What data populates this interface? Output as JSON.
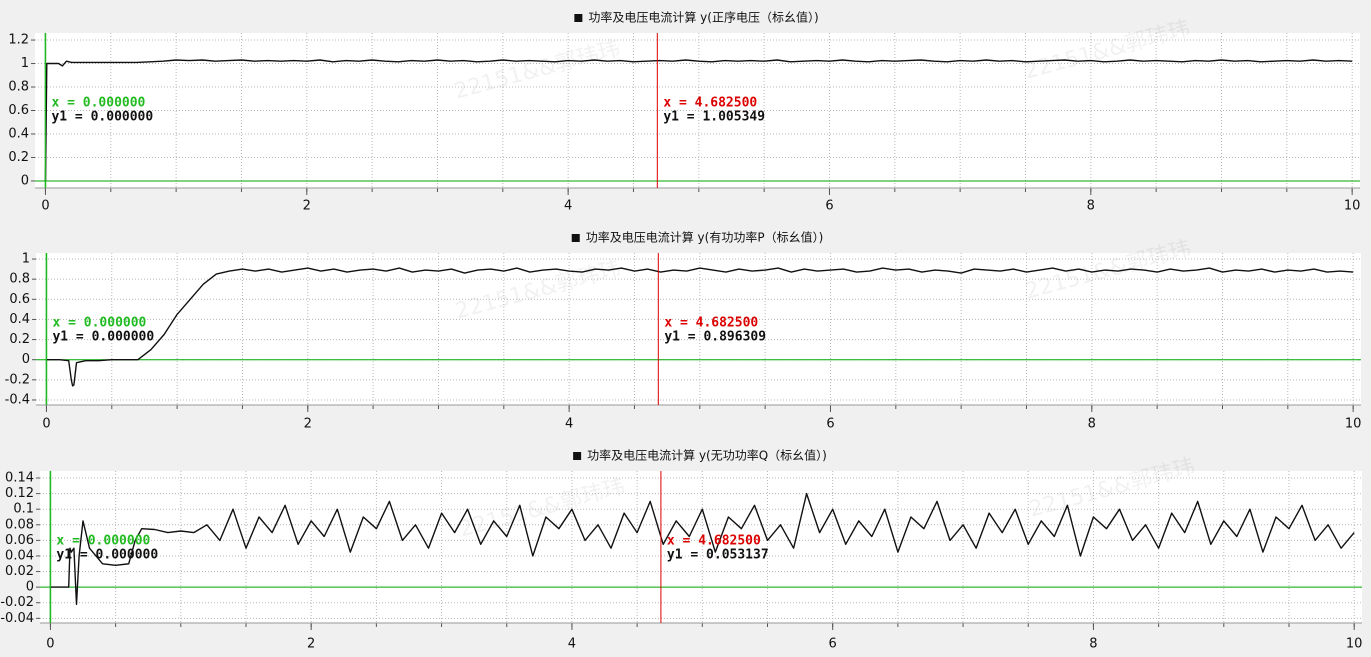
{
  "watermark": "22151&&郭玮玮",
  "chart_data": [
    {
      "type": "line",
      "title": "功率及电压电流计算 y(正序电压（标幺值）)",
      "xlim": [
        -0.08,
        10.06
      ],
      "ylim": [
        -0.06,
        1.26
      ],
      "xticks": [
        0,
        2,
        4,
        6,
        8,
        10
      ],
      "yticks": [
        0,
        0.2,
        0.4,
        0.6,
        0.8,
        1,
        1.2
      ],
      "minor_xticks": [
        0,
        0.5,
        1,
        1.5,
        2,
        2.5,
        3,
        3.5,
        4,
        4.5,
        5,
        5.5,
        6,
        6.5,
        7,
        7.5,
        8,
        8.5,
        9,
        9.5,
        10
      ],
      "grid": true,
      "axis_color": "#00aa00",
      "x": [
        0,
        0.01,
        0.1,
        0.13,
        0.16,
        0.2,
        0.3,
        0.4,
        0.5,
        0.6,
        0.7,
        0.8,
        0.9,
        1,
        1.1,
        1.2,
        1.3,
        1.4,
        1.5,
        1.6,
        1.7,
        1.8,
        1.9,
        2,
        2.1,
        2.2,
        2.3,
        2.4,
        2.5,
        2.6,
        2.7,
        2.8,
        2.9,
        3,
        3.1,
        3.2,
        3.3,
        3.4,
        3.5,
        3.6,
        3.7,
        3.8,
        3.9,
        4,
        4.1,
        4.2,
        4.3,
        4.4,
        4.5,
        4.6,
        4.7,
        4.8,
        4.9,
        5,
        5.1,
        5.2,
        5.3,
        5.4,
        5.5,
        5.6,
        5.7,
        5.8,
        5.9,
        6,
        6.1,
        6.2,
        6.3,
        6.4,
        6.5,
        6.6,
        6.7,
        6.8,
        6.9,
        7,
        7.1,
        7.2,
        7.3,
        7.4,
        7.5,
        7.6,
        7.7,
        7.8,
        7.9,
        8,
        8.1,
        8.2,
        8.3,
        8.4,
        8.5,
        8.6,
        8.7,
        8.8,
        8.9,
        9,
        9.1,
        9.2,
        9.3,
        9.4,
        9.5,
        9.6,
        9.7,
        9.8,
        9.9,
        10
      ],
      "series": [
        {
          "color": "#111111",
          "values": [
            0,
            1,
            1,
            0.98,
            1.02,
            1.01,
            1.01,
            1.01,
            1.01,
            1.01,
            1.01,
            1.015,
            1.02,
            1.03,
            1.025,
            1.03,
            1.02,
            1.025,
            1.03,
            1.02,
            1.025,
            1.02,
            1.025,
            1.02,
            1.03,
            1.015,
            1.025,
            1.02,
            1.03,
            1.02,
            1.015,
            1.025,
            1.02,
            1.03,
            1.02,
            1.025,
            1.015,
            1.02,
            1.03,
            1.02,
            1.025,
            1.02,
            1.015,
            1.025,
            1.02,
            1.03,
            1.02,
            1.025,
            1.015,
            1.02,
            1.025,
            1.02,
            1.03,
            1.02,
            1.015,
            1.025,
            1.02,
            1.025,
            1.02,
            1.03,
            1.015,
            1.02,
            1.025,
            1.02,
            1.03,
            1.02,
            1.015,
            1.025,
            1.02,
            1.025,
            1.03,
            1.02,
            1.015,
            1.025,
            1.02,
            1.03,
            1.02,
            1.025,
            1.015,
            1.02,
            1.025,
            1.03,
            1.02,
            1.025,
            1.015,
            1.02,
            1.03,
            1.02,
            1.025,
            1.02,
            1.015,
            1.025,
            1.02,
            1.03,
            1.02,
            1.025,
            1.015,
            1.02,
            1.025,
            1.02,
            1.03,
            1.02,
            1.025,
            1.02
          ]
        }
      ],
      "cursors": [
        {
          "x": 0,
          "color": "#22bb22",
          "x_label": "x = 0.000000",
          "y_label": "y1 = 0.000000"
        },
        {
          "x": 4.6825,
          "color": "#dd0000",
          "x_label": "x = 4.682500",
          "y_label": "y1 = 1.005349"
        }
      ]
    },
    {
      "type": "line",
      "title": "功率及电压电流计算 y(有功功率P（标幺值）)",
      "xlim": [
        -0.08,
        10.06
      ],
      "ylim": [
        -0.45,
        1.06
      ],
      "xticks": [
        0,
        2,
        4,
        6,
        8,
        10
      ],
      "yticks": [
        -0.4,
        -0.2,
        0,
        0.2,
        0.4,
        0.6,
        0.8,
        1
      ],
      "minor_xticks": [
        0,
        0.5,
        1,
        1.5,
        2,
        2.5,
        3,
        3.5,
        4,
        4.5,
        5,
        5.5,
        6,
        6.5,
        7,
        7.5,
        8,
        8.5,
        9,
        9.5,
        10
      ],
      "grid": true,
      "axis_color": "#00aa00",
      "x": [
        0,
        0.1,
        0.17,
        0.19,
        0.2,
        0.21,
        0.23,
        0.3,
        0.4,
        0.5,
        0.6,
        0.7,
        0.8,
        0.9,
        1,
        1.1,
        1.2,
        1.3,
        1.4,
        1.5,
        1.6,
        1.7,
        1.8,
        1.9,
        2,
        2.1,
        2.2,
        2.3,
        2.4,
        2.5,
        2.6,
        2.7,
        2.8,
        2.9,
        3,
        3.1,
        3.2,
        3.3,
        3.4,
        3.5,
        3.6,
        3.7,
        3.8,
        3.9,
        4,
        4.1,
        4.2,
        4.3,
        4.4,
        4.5,
        4.6,
        4.7,
        4.8,
        4.9,
        5,
        5.1,
        5.2,
        5.3,
        5.4,
        5.5,
        5.6,
        5.7,
        5.8,
        5.9,
        6,
        6.1,
        6.2,
        6.3,
        6.4,
        6.5,
        6.6,
        6.7,
        6.8,
        6.9,
        7,
        7.1,
        7.2,
        7.3,
        7.4,
        7.5,
        7.6,
        7.7,
        7.8,
        7.9,
        8,
        8.1,
        8.2,
        8.3,
        8.4,
        8.5,
        8.6,
        8.7,
        8.8,
        8.9,
        9,
        9.1,
        9.2,
        9.3,
        9.4,
        9.5,
        9.6,
        9.7,
        9.8,
        9.9,
        10
      ],
      "series": [
        {
          "color": "#111111",
          "values": [
            0,
            0,
            -0.01,
            -0.2,
            -0.26,
            -0.25,
            -0.03,
            -0.01,
            -0.01,
            0,
            0,
            0,
            0.1,
            0.25,
            0.45,
            0.6,
            0.75,
            0.85,
            0.88,
            0.9,
            0.88,
            0.9,
            0.87,
            0.89,
            0.91,
            0.88,
            0.9,
            0.87,
            0.89,
            0.9,
            0.88,
            0.91,
            0.87,
            0.89,
            0.88,
            0.9,
            0.86,
            0.89,
            0.9,
            0.88,
            0.91,
            0.87,
            0.89,
            0.9,
            0.88,
            0.87,
            0.9,
            0.89,
            0.91,
            0.88,
            0.9,
            0.87,
            0.89,
            0.88,
            0.91,
            0.89,
            0.87,
            0.9,
            0.88,
            0.89,
            0.91,
            0.87,
            0.9,
            0.88,
            0.89,
            0.9,
            0.87,
            0.88,
            0.91,
            0.89,
            0.9,
            0.87,
            0.89,
            0.88,
            0.86,
            0.9,
            0.89,
            0.88,
            0.9,
            0.87,
            0.89,
            0.91,
            0.88,
            0.9,
            0.87,
            0.89,
            0.88,
            0.9,
            0.89,
            0.87,
            0.9,
            0.88,
            0.89,
            0.91,
            0.87,
            0.89,
            0.88,
            0.9,
            0.87,
            0.89,
            0.88,
            0.9,
            0.87,
            0.88,
            0.87
          ]
        }
      ],
      "cursors": [
        {
          "x": 0,
          "color": "#22bb22",
          "x_label": "x = 0.000000",
          "y_label": "y1 = 0.000000"
        },
        {
          "x": 4.6825,
          "color": "#dd0000",
          "x_label": "x = 4.682500",
          "y_label": "y1 = 0.896309"
        }
      ]
    },
    {
      "type": "line",
      "title": "功率及电压电流计算 y(无功功率Q（标幺值）)",
      "xlim": [
        -0.08,
        10.06
      ],
      "ylim": [
        -0.046,
        0.149
      ],
      "xticks": [
        0,
        2,
        4,
        6,
        8,
        10
      ],
      "yticks": [
        -0.04,
        -0.02,
        0,
        0.02,
        0.04,
        0.06,
        0.08,
        0.1,
        0.12,
        0.14
      ],
      "minor_xticks": [
        0,
        0.5,
        1,
        1.5,
        2,
        2.5,
        3,
        3.5,
        4,
        4.5,
        5,
        5.5,
        6,
        6.5,
        7,
        7.5,
        8,
        8.5,
        9,
        9.5,
        10
      ],
      "grid": true,
      "axis_color": "#00aa00",
      "x": [
        0,
        0.14,
        0.15,
        0.16,
        0.18,
        0.2,
        0.22,
        0.25,
        0.3,
        0.4,
        0.5,
        0.6,
        0.65,
        0.7,
        0.8,
        0.9,
        1,
        1.1,
        1.2,
        1.3,
        1.4,
        1.5,
        1.6,
        1.7,
        1.8,
        1.9,
        2,
        2.1,
        2.2,
        2.3,
        2.4,
        2.5,
        2.6,
        2.7,
        2.8,
        2.9,
        3,
        3.1,
        3.2,
        3.3,
        3.4,
        3.5,
        3.6,
        3.7,
        3.8,
        3.9,
        4,
        4.1,
        4.2,
        4.3,
        4.4,
        4.5,
        4.6,
        4.7,
        4.8,
        4.9,
        5,
        5.1,
        5.2,
        5.3,
        5.4,
        5.5,
        5.6,
        5.7,
        5.8,
        5.9,
        6,
        6.1,
        6.2,
        6.3,
        6.4,
        6.5,
        6.6,
        6.7,
        6.8,
        6.9,
        7,
        7.1,
        7.2,
        7.3,
        7.4,
        7.5,
        7.6,
        7.7,
        7.8,
        7.9,
        8,
        8.1,
        8.2,
        8.3,
        8.4,
        8.5,
        8.6,
        8.7,
        8.8,
        8.9,
        9,
        9.1,
        9.2,
        9.3,
        9.4,
        9.5,
        9.6,
        9.7,
        9.8,
        9.9,
        10
      ],
      "series": [
        {
          "color": "#111111",
          "values": [
            0,
            0,
            0.05,
            0.045,
            0.05,
            -0.022,
            0.04,
            0.085,
            0.05,
            0.03,
            0.028,
            0.03,
            0.06,
            0.075,
            0.074,
            0.07,
            0.072,
            0.07,
            0.08,
            0.06,
            0.1,
            0.05,
            0.09,
            0.07,
            0.105,
            0.055,
            0.085,
            0.065,
            0.1,
            0.045,
            0.09,
            0.075,
            0.11,
            0.06,
            0.08,
            0.05,
            0.095,
            0.07,
            0.1,
            0.055,
            0.085,
            0.065,
            0.105,
            0.04,
            0.09,
            0.075,
            0.1,
            0.06,
            0.08,
            0.05,
            0.095,
            0.07,
            0.11,
            0.055,
            0.085,
            0.065,
            0.1,
            0.045,
            0.09,
            0.075,
            0.105,
            0.06,
            0.08,
            0.05,
            0.12,
            0.07,
            0.1,
            0.055,
            0.085,
            0.065,
            0.1,
            0.045,
            0.09,
            0.075,
            0.11,
            0.06,
            0.08,
            0.05,
            0.095,
            0.07,
            0.1,
            0.055,
            0.085,
            0.065,
            0.105,
            0.04,
            0.09,
            0.075,
            0.1,
            0.06,
            0.08,
            0.05,
            0.095,
            0.07,
            0.11,
            0.055,
            0.085,
            0.065,
            0.1,
            0.045,
            0.09,
            0.075,
            0.105,
            0.06,
            0.08,
            0.05,
            0.07
          ]
        }
      ],
      "cursors": [
        {
          "x": 0,
          "color": "#22bb22",
          "x_label": "x = 0.000000",
          "y_label": "y1 = 0.000000"
        },
        {
          "x": 4.6825,
          "color": "#dd0000",
          "x_label": "x = 4.682500",
          "y_label": "y1 = 0.053137"
        }
      ]
    }
  ]
}
